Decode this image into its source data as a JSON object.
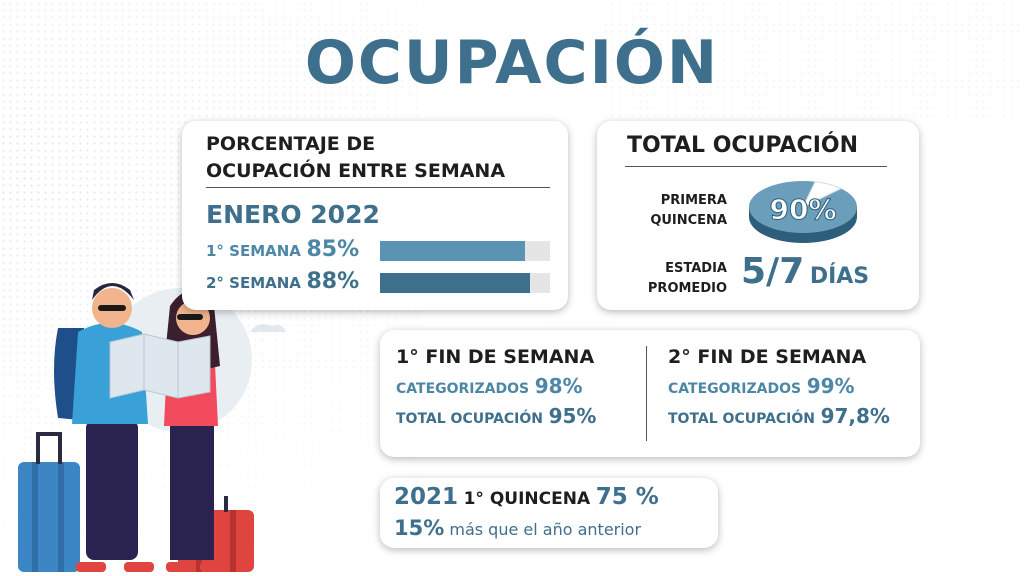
{
  "title": "OCUPACIÓN",
  "weekday_card": {
    "heading_line1": "PORCENTAJE DE",
    "heading_line2": "OCUPACIÓN ENTRE SEMANA",
    "month": "ENERO 2022",
    "rows": [
      {
        "label": "1° SEMANA",
        "value": "85%",
        "fraction": 0.85,
        "color": "#5b93b4"
      },
      {
        "label": "2° SEMANA",
        "value": "88%",
        "fraction": 0.88,
        "color": "#3e6f8c"
      }
    ]
  },
  "total_card": {
    "heading": "TOTAL OCUPACIÓN",
    "first_label_line1": "PRIMERA",
    "first_label_line2": "QUINCENA",
    "pie_value": "90%",
    "pie_fraction": 0.9,
    "stay_label_line1": "ESTADIA",
    "stay_label_line2": "PROMEDIO",
    "stay_value": "5/7",
    "stay_unit": "DÍAS"
  },
  "weekend_card": {
    "weekends": [
      {
        "heading": "1° FIN DE SEMANA",
        "cat_label": "CATEGORIZADOS",
        "cat_value": "98%",
        "total_label": "TOTAL OCUPACIÓN",
        "total_value": "95%"
      },
      {
        "heading": "2° FIN DE SEMANA",
        "cat_label": "CATEGORIZADOS",
        "cat_value": "99%",
        "total_label": "TOTAL OCUPACIÓN",
        "total_value": "97,8%"
      }
    ]
  },
  "year_card": {
    "year": "2021",
    "period": "1° QUINCENA",
    "value": "75 %",
    "diff_value": "15%",
    "diff_text": "más que el año anterior"
  },
  "colors": {
    "accent": "#3e6f8c",
    "accent_light": "#5b93b4",
    "text": "#1e1e1e"
  }
}
